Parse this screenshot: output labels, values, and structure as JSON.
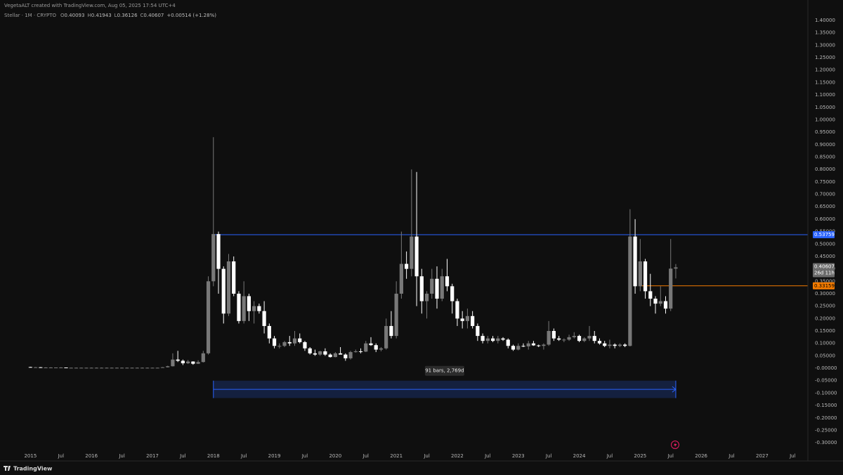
{
  "header": {
    "credit": "VegetaALT created with TradingView.com, Aug 05, 2025 17:54 UTC+4",
    "symbol": "Stellar · 1M · CRYPTO",
    "ohlc_labels": [
      "O",
      "H",
      "L",
      "C"
    ],
    "change": "+0.00514 (+1.28%)"
  },
  "footer": {
    "brand": "TradingView"
  },
  "chart_data": {
    "type": "candlestick",
    "up_color": "#787878",
    "down_color": "#ffffff",
    "x": [
      "2015-01",
      "2015-02",
      "2015-03",
      "2015-04",
      "2015-05",
      "2015-06",
      "2015-07",
      "2015-08",
      "2015-09",
      "2015-10",
      "2015-11",
      "2015-12",
      "2016-01",
      "2016-02",
      "2016-03",
      "2016-04",
      "2016-05",
      "2016-06",
      "2016-07",
      "2016-08",
      "2016-09",
      "2016-10",
      "2016-11",
      "2016-12",
      "2017-01",
      "2017-02",
      "2017-03",
      "2017-04",
      "2017-05",
      "2017-06",
      "2017-07",
      "2017-08",
      "2017-09",
      "2017-10",
      "2017-11",
      "2017-12",
      "2018-01",
      "2018-02",
      "2018-03",
      "2018-04",
      "2018-05",
      "2018-06",
      "2018-07",
      "2018-08",
      "2018-09",
      "2018-10",
      "2018-11",
      "2018-12",
      "2019-01",
      "2019-02",
      "2019-03",
      "2019-04",
      "2019-05",
      "2019-06",
      "2019-07",
      "2019-08",
      "2019-09",
      "2019-10",
      "2019-11",
      "2019-12",
      "2020-01",
      "2020-02",
      "2020-03",
      "2020-04",
      "2020-05",
      "2020-06",
      "2020-07",
      "2020-08",
      "2020-09",
      "2020-10",
      "2020-11",
      "2020-12",
      "2021-01",
      "2021-02",
      "2021-03",
      "2021-04",
      "2021-05",
      "2021-06",
      "2021-07",
      "2021-08",
      "2021-09",
      "2021-10",
      "2021-11",
      "2021-12",
      "2022-01",
      "2022-02",
      "2022-03",
      "2022-04",
      "2022-05",
      "2022-06",
      "2022-07",
      "2022-08",
      "2022-09",
      "2022-10",
      "2022-11",
      "2022-12",
      "2023-01",
      "2023-02",
      "2023-03",
      "2023-04",
      "2023-05",
      "2023-06",
      "2023-07",
      "2023-08",
      "2023-09",
      "2023-10",
      "2023-11",
      "2023-12",
      "2024-01",
      "2024-02",
      "2024-03",
      "2024-04",
      "2024-05",
      "2024-06",
      "2024-07",
      "2024-08",
      "2024-09",
      "2024-10",
      "2024-11",
      "2024-12",
      "2025-01",
      "2025-02",
      "2025-03",
      "2025-04",
      "2025-05",
      "2025-06",
      "2025-07",
      "2025-08"
    ],
    "open": [
      0.005,
      0.004,
      0.004,
      0.003,
      0.003,
      0.003,
      0.003,
      0.003,
      0.002,
      0.002,
      0.002,
      0.002,
      0.002,
      0.002,
      0.002,
      0.002,
      0.002,
      0.002,
      0.002,
      0.002,
      0.002,
      0.002,
      0.002,
      0.002,
      0.002,
      0.002,
      0.002,
      0.004,
      0.008,
      0.035,
      0.03,
      0.02,
      0.027,
      0.018,
      0.025,
      0.06,
      0.35,
      0.54,
      0.4,
      0.22,
      0.43,
      0.3,
      0.19,
      0.29,
      0.23,
      0.25,
      0.23,
      0.17,
      0.12,
      0.09,
      0.09,
      0.105,
      0.1,
      0.12,
      0.105,
      0.08,
      0.06,
      0.055,
      0.068,
      0.055,
      0.045,
      0.06,
      0.055,
      0.04,
      0.065,
      0.068,
      0.067,
      0.1,
      0.093,
      0.075,
      0.08,
      0.17,
      0.13,
      0.3,
      0.42,
      0.4,
      0.53,
      0.37,
      0.27,
      0.3,
      0.36,
      0.28,
      0.37,
      0.33,
      0.27,
      0.2,
      0.19,
      0.21,
      0.17,
      0.13,
      0.11,
      0.12,
      0.11,
      0.12,
      0.115,
      0.09,
      0.075,
      0.09,
      0.088,
      0.1,
      0.092,
      0.09,
      0.095,
      0.15,
      0.12,
      0.115,
      0.115,
      0.125,
      0.13,
      0.11,
      0.12,
      0.13,
      0.11,
      0.1,
      0.09,
      0.095,
      0.09,
      0.095,
      0.09,
      0.53,
      0.33,
      0.43,
      0.31,
      0.28,
      0.26,
      0.27,
      0.24,
      0.40093
    ],
    "high": [
      0.006,
      0.005,
      0.005,
      0.004,
      0.004,
      0.003,
      0.004,
      0.003,
      0.003,
      0.003,
      0.003,
      0.003,
      0.003,
      0.003,
      0.003,
      0.003,
      0.003,
      0.003,
      0.003,
      0.003,
      0.003,
      0.003,
      0.003,
      0.003,
      0.003,
      0.003,
      0.005,
      0.01,
      0.06,
      0.07,
      0.035,
      0.033,
      0.028,
      0.032,
      0.07,
      0.37,
      0.93,
      0.55,
      0.41,
      0.46,
      0.45,
      0.31,
      0.35,
      0.3,
      0.27,
      0.26,
      0.27,
      0.18,
      0.13,
      0.1,
      0.11,
      0.13,
      0.15,
      0.14,
      0.11,
      0.085,
      0.075,
      0.07,
      0.08,
      0.06,
      0.065,
      0.085,
      0.06,
      0.07,
      0.075,
      0.08,
      0.11,
      0.125,
      0.1,
      0.085,
      0.2,
      0.23,
      0.35,
      0.55,
      0.47,
      0.8,
      0.79,
      0.4,
      0.31,
      0.4,
      0.41,
      0.4,
      0.44,
      0.34,
      0.28,
      0.23,
      0.24,
      0.23,
      0.18,
      0.14,
      0.13,
      0.13,
      0.13,
      0.125,
      0.12,
      0.095,
      0.1,
      0.1,
      0.11,
      0.11,
      0.095,
      0.1,
      0.19,
      0.16,
      0.13,
      0.12,
      0.135,
      0.145,
      0.135,
      0.125,
      0.17,
      0.15,
      0.12,
      0.11,
      0.115,
      0.1,
      0.1,
      0.1,
      0.64,
      0.6,
      0.52,
      0.44,
      0.38,
      0.29,
      0.33,
      0.29,
      0.52,
      0.41943
    ],
    "low": [
      0.003,
      0.003,
      0.003,
      0.002,
      0.002,
      0.002,
      0.002,
      0.002,
      0.002,
      0.002,
      0.002,
      0.002,
      0.001,
      0.001,
      0.001,
      0.001,
      0.001,
      0.001,
      0.001,
      0.001,
      0.001,
      0.001,
      0.001,
      0.001,
      0.002,
      0.002,
      0.002,
      0.003,
      0.007,
      0.025,
      0.013,
      0.017,
      0.014,
      0.017,
      0.023,
      0.055,
      0.33,
      0.3,
      0.18,
      0.21,
      0.29,
      0.18,
      0.18,
      0.19,
      0.18,
      0.22,
      0.14,
      0.1,
      0.08,
      0.08,
      0.085,
      0.09,
      0.09,
      0.1,
      0.07,
      0.055,
      0.05,
      0.05,
      0.05,
      0.043,
      0.044,
      0.055,
      0.03,
      0.035,
      0.063,
      0.06,
      0.065,
      0.09,
      0.065,
      0.068,
      0.075,
      0.12,
      0.12,
      0.28,
      0.36,
      0.37,
      0.25,
      0.22,
      0.2,
      0.28,
      0.24,
      0.27,
      0.31,
      0.22,
      0.17,
      0.16,
      0.16,
      0.16,
      0.11,
      0.1,
      0.1,
      0.105,
      0.1,
      0.11,
      0.08,
      0.07,
      0.072,
      0.085,
      0.075,
      0.09,
      0.085,
      0.075,
      0.09,
      0.11,
      0.11,
      0.105,
      0.11,
      0.12,
      0.105,
      0.105,
      0.11,
      0.1,
      0.095,
      0.085,
      0.08,
      0.08,
      0.085,
      0.085,
      0.088,
      0.3,
      0.31,
      0.28,
      0.25,
      0.22,
      0.25,
      0.22,
      0.23,
      0.36126
    ],
    "close": [
      0.004,
      0.004,
      0.003,
      0.003,
      0.003,
      0.003,
      0.003,
      0.002,
      0.002,
      0.002,
      0.002,
      0.002,
      0.002,
      0.002,
      0.002,
      0.002,
      0.002,
      0.002,
      0.002,
      0.002,
      0.002,
      0.002,
      0.002,
      0.002,
      0.002,
      0.002,
      0.004,
      0.008,
      0.035,
      0.03,
      0.02,
      0.027,
      0.018,
      0.025,
      0.06,
      0.35,
      0.54,
      0.4,
      0.22,
      0.43,
      0.3,
      0.19,
      0.29,
      0.23,
      0.25,
      0.23,
      0.17,
      0.12,
      0.09,
      0.09,
      0.105,
      0.1,
      0.12,
      0.105,
      0.08,
      0.06,
      0.055,
      0.068,
      0.055,
      0.045,
      0.06,
      0.055,
      0.04,
      0.065,
      0.068,
      0.067,
      0.1,
      0.093,
      0.075,
      0.08,
      0.17,
      0.13,
      0.3,
      0.42,
      0.4,
      0.53,
      0.37,
      0.27,
      0.3,
      0.36,
      0.28,
      0.37,
      0.33,
      0.27,
      0.2,
      0.19,
      0.21,
      0.17,
      0.13,
      0.11,
      0.12,
      0.11,
      0.12,
      0.115,
      0.09,
      0.075,
      0.09,
      0.088,
      0.1,
      0.092,
      0.09,
      0.095,
      0.15,
      0.12,
      0.115,
      0.115,
      0.125,
      0.13,
      0.11,
      0.12,
      0.13,
      0.11,
      0.1,
      0.09,
      0.095,
      0.09,
      0.095,
      0.09,
      0.53,
      0.33,
      0.43,
      0.31,
      0.28,
      0.26,
      0.27,
      0.24,
      0.40093,
      0.40607
    ],
    "countdown": "26d 11h",
    "xlim": [
      "2014-07",
      "2027-10"
    ],
    "xticks": [
      {
        "value": "2015-01",
        "label": "2015"
      },
      {
        "value": "2015-07",
        "label": "Jul"
      },
      {
        "value": "2016-01",
        "label": "2016"
      },
      {
        "value": "2016-07",
        "label": "Jul"
      },
      {
        "value": "2017-01",
        "label": "2017"
      },
      {
        "value": "2017-07",
        "label": "Jul"
      },
      {
        "value": "2018-01",
        "label": "2018"
      },
      {
        "value": "2018-07",
        "label": "Jul"
      },
      {
        "value": "2019-01",
        "label": "2019"
      },
      {
        "value": "2019-07",
        "label": "Jul"
      },
      {
        "value": "2020-01",
        "label": "2020"
      },
      {
        "value": "2020-07",
        "label": "Jul"
      },
      {
        "value": "2021-01",
        "label": "2021"
      },
      {
        "value": "2021-07",
        "label": "Jul"
      },
      {
        "value": "2022-01",
        "label": "2022"
      },
      {
        "value": "2022-07",
        "label": "Jul"
      },
      {
        "value": "2023-01",
        "label": "2023"
      },
      {
        "value": "2023-07",
        "label": "Jul"
      },
      {
        "value": "2024-01",
        "label": "2024"
      },
      {
        "value": "2024-07",
        "label": "Jul"
      },
      {
        "value": "2025-01",
        "label": "2025"
      },
      {
        "value": "2025-07",
        "label": "Jul"
      },
      {
        "value": "2026-01",
        "label": "2026"
      },
      {
        "value": "2026-07",
        "label": "Jul"
      },
      {
        "value": "2027-01",
        "label": "2027"
      },
      {
        "value": "2027-07",
        "label": "Jul"
      }
    ],
    "ylim": [
      -0.342,
      1.482
    ],
    "yticks": [
      {
        "value": 1.4,
        "label": "1.40000"
      },
      {
        "value": 1.35,
        "label": "1.35000"
      },
      {
        "value": 1.3,
        "label": "1.30000"
      },
      {
        "value": 1.25,
        "label": "1.25000"
      },
      {
        "value": 1.2,
        "label": "1.20000"
      },
      {
        "value": 1.15,
        "label": "1.15000"
      },
      {
        "value": 1.1,
        "label": "1.10000"
      },
      {
        "value": 1.05,
        "label": "1.05000"
      },
      {
        "value": 1,
        "label": "1.00000"
      },
      {
        "value": 0.95,
        "label": "0.95000"
      },
      {
        "value": 0.9,
        "label": "0.90000"
      },
      {
        "value": 0.85,
        "label": "0.85000"
      },
      {
        "value": 0.8,
        "label": "0.80000"
      },
      {
        "value": 0.75,
        "label": "0.75000"
      },
      {
        "value": 0.7,
        "label": "0.70000"
      },
      {
        "value": 0.65,
        "label": "0.65000"
      },
      {
        "value": 0.6,
        "label": "0.60000"
      },
      {
        "value": 0.55,
        "label": "0.55000"
      },
      {
        "value": 0.5,
        "label": "0.50000"
      },
      {
        "value": 0.45,
        "label": "0.45000"
      },
      {
        "value": 0.4,
        "label": "0.40000"
      },
      {
        "value": 0.35,
        "label": "0.35000"
      },
      {
        "value": 0.3,
        "label": "0.30000"
      },
      {
        "value": 0.25,
        "label": "0.25000"
      },
      {
        "value": 0.2,
        "label": "0.20000"
      },
      {
        "value": 0.15,
        "label": "0.15000"
      },
      {
        "value": 0.1,
        "label": "0.10000"
      },
      {
        "value": 0.05,
        "label": "0.05000"
      },
      {
        "value": 0,
        "label": "-0.00000"
      },
      {
        "value": -0.05,
        "label": "-0.05000"
      },
      {
        "value": -0.1,
        "label": "-0.10000"
      },
      {
        "value": -0.15,
        "label": "-0.15000"
      },
      {
        "value": -0.2,
        "label": "-0.20000"
      },
      {
        "value": -0.25,
        "label": "-0.25000"
      },
      {
        "value": -0.3,
        "label": "-0.30000"
      }
    ],
    "horizontal_lines": [
      {
        "value": 0.53759,
        "color": "#2962ff",
        "start": "2018-01"
      },
      {
        "value": 0.33159,
        "color": "#f57c00",
        "start": "2025-01"
      }
    ],
    "date_range": {
      "label": "91 bars, 2,769d",
      "start": "2018-01",
      "end": "2025-08",
      "top": -0.05,
      "bottom": -0.12,
      "color": "#2962ff"
    }
  }
}
